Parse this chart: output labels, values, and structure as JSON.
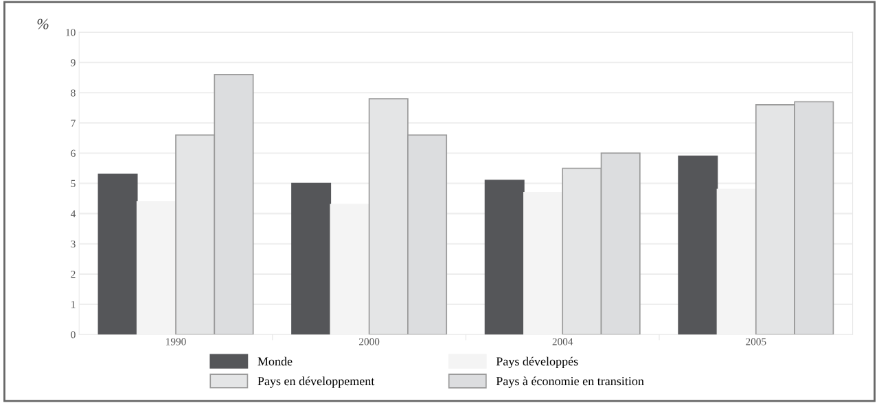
{
  "chart_data": {
    "type": "bar",
    "ylabel": "%",
    "categories": [
      "1990",
      "2000",
      "2004",
      "2005"
    ],
    "series": [
      {
        "name": "Monde",
        "color": "#555659",
        "values": [
          5.3,
          5.0,
          5.1,
          5.9
        ]
      },
      {
        "name": "Pays développés",
        "color": "#f4f4f4",
        "values": [
          4.4,
          4.3,
          4.7,
          4.8
        ]
      },
      {
        "name": "Pays en développement",
        "color": "#e4e5e6",
        "values": [
          6.6,
          7.8,
          5.5,
          7.6
        ]
      },
      {
        "name": "Pays à économie en transition",
        "color": "#dcdddf",
        "values": [
          8.6,
          6.6,
          6.0,
          7.7
        ]
      }
    ],
    "ylim": [
      0,
      10
    ],
    "yticks": [
      0,
      1,
      2,
      3,
      4,
      5,
      6,
      7,
      8,
      9,
      10
    ],
    "grid": "y",
    "legend": "bottom"
  }
}
